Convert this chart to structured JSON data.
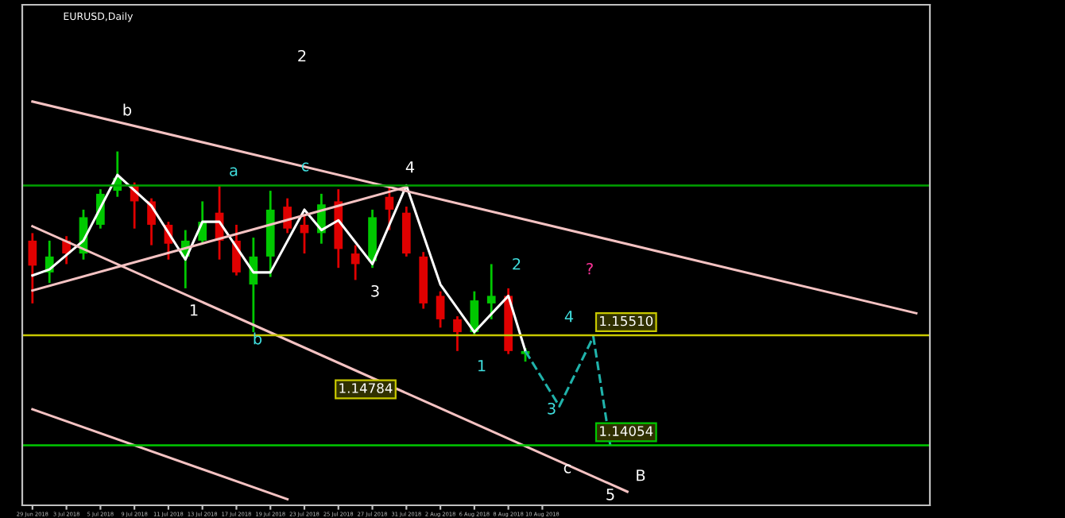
{
  "chart_data": {
    "type": "candlestick",
    "title": "EURUSD,Daily",
    "categories": [
      "29 Jun 2018",
      null,
      "3 Jul 2018",
      null,
      "5 Jul 2018",
      null,
      "9 Jul 2018",
      null,
      "11 Jul 2018",
      null,
      "13 Jul 2018",
      null,
      "17 Jul 2018",
      null,
      "19 Jul 2018",
      null,
      "23 Jul 2018",
      null,
      "25 Jul 2018",
      null,
      "27 Jul 2018",
      null,
      "31 Jul 2018",
      null,
      "2 Aug 2018",
      null,
      "6 Aug 2018",
      null,
      "8 Aug 2018",
      null,
      "10 Aug 2018",
      null,
      null,
      null,
      null,
      null,
      null,
      null,
      null,
      null,
      null,
      null,
      null,
      null,
      null,
      null,
      null,
      null,
      null,
      null,
      null,
      null,
      null
    ],
    "ohlc": [
      [
        1.1676,
        1.1686,
        1.1593,
        1.1643
      ],
      [
        1.1634,
        1.1676,
        1.162,
        1.1655
      ],
      [
        1.1676,
        1.1682,
        1.1645,
        1.1659
      ],
      [
        1.1659,
        1.1717,
        1.1651,
        1.1707
      ],
      [
        1.1697,
        1.1744,
        1.1692,
        1.1738
      ],
      [
        1.1742,
        1.1794,
        1.1734,
        1.1759
      ],
      [
        1.1749,
        1.1753,
        1.1692,
        1.1728
      ],
      [
        1.1728,
        1.1732,
        1.167,
        1.1697
      ],
      [
        1.1697,
        1.1701,
        1.1651,
        1.1672
      ],
      [
        1.1655,
        1.169,
        1.1613,
        1.1676
      ],
      [
        1.1676,
        1.1728,
        1.1672,
        1.1701
      ],
      [
        1.1713,
        1.1749,
        1.1651,
        1.1676
      ],
      [
        1.1676,
        1.1697,
        1.163,
        1.1634
      ],
      [
        1.1618,
        1.168,
        1.1555,
        1.1655
      ],
      [
        1.1655,
        1.1742,
        1.1628,
        1.1717
      ],
      [
        1.1721,
        1.1732,
        1.1686,
        1.1692
      ],
      [
        1.1697,
        1.1711,
        1.1659,
        1.1686
      ],
      [
        1.1686,
        1.1738,
        1.1672,
        1.1724
      ],
      [
        1.1728,
        1.1744,
        1.164,
        1.1665
      ],
      [
        1.1659,
        1.167,
        1.1624,
        1.1645
      ],
      [
        1.1649,
        1.1717,
        1.164,
        1.1707
      ],
      [
        1.1734,
        1.1749,
        1.169,
        1.1717
      ],
      [
        1.1713,
        1.1721,
        1.1655,
        1.1659
      ],
      [
        1.1655,
        1.1661,
        1.1586,
        1.1593
      ],
      [
        1.1603,
        1.1609,
        1.1561,
        1.1572
      ],
      [
        1.1572,
        1.1576,
        1.153,
        1.1555
      ],
      [
        1.1555,
        1.1609,
        1.1551,
        1.1597
      ],
      [
        1.1593,
        1.1645,
        1.1572,
        1.1603
      ],
      [
        1.1603,
        1.1613,
        1.1526,
        1.153
      ],
      [
        1.1526,
        1.1534,
        1.1516,
        1.153
      ],
      null,
      null,
      null,
      null,
      null,
      null,
      null,
      null,
      null,
      null,
      null,
      null,
      null,
      null,
      null,
      null,
      null,
      null,
      null,
      null,
      null,
      null,
      null
    ],
    "colors": [
      "#e00000",
      "#00c800",
      "#e00000",
      "#00c800",
      "#00c800",
      "#00c800",
      "#e00000",
      "#e00000",
      "#e00000",
      "#00c800",
      "#00c800",
      "#e00000",
      "#e00000",
      "#00c800",
      "#00c800",
      "#e00000",
      "#e00000",
      "#00c800",
      "#e00000",
      "#e00000",
      "#00c800",
      "#e00000",
      "#e00000",
      "#e00000",
      "#e00000",
      "#e00000",
      "#00c800",
      "#00c800",
      "#e00000",
      "#00c800",
      null,
      null,
      null,
      null,
      null,
      null,
      null,
      null,
      null,
      null,
      null,
      null,
      null,
      null,
      null,
      null,
      null,
      null,
      null,
      null,
      null,
      null,
      null
    ],
    "ylim": [
      1.1326,
      1.1988
    ],
    "tick_labels": "x",
    "series": [
      {
        "type": "line",
        "color": "#ffffff",
        "values": [
          1.163,
          1.1638,
          null,
          1.1676,
          null,
          1.1763,
          null,
          1.1722,
          null,
          1.1651,
          1.1701,
          1.1701,
          null,
          1.1634,
          1.1634,
          null,
          1.1717,
          1.169,
          1.1703,
          null,
          1.1645,
          null,
          1.1749,
          null,
          1.1618,
          null,
          1.1555,
          null,
          1.1603,
          1.153,
          null,
          null,
          null,
          null,
          null,
          null,
          null,
          null,
          null,
          null,
          null,
          null,
          null,
          null,
          null,
          null,
          null,
          null,
          null,
          null,
          null,
          null,
          null
        ]
      },
      {
        "type": "line",
        "color": "#f4c2c2",
        "values": [
          1.186,
          null,
          null,
          null,
          null,
          null,
          null,
          null,
          null,
          null,
          null,
          null,
          null,
          null,
          null,
          null,
          null,
          null,
          null,
          null,
          null,
          null,
          null,
          null,
          null,
          null,
          null,
          null,
          null,
          null,
          null,
          null,
          null,
          null,
          null,
          null,
          null,
          null,
          null,
          null,
          null,
          null,
          null,
          null,
          null,
          null,
          null,
          null,
          null,
          null,
          null,
          null,
          1.158
        ]
      },
      {
        "type": "line",
        "color": "#f4c2c2",
        "values": [
          1.1695,
          null,
          null,
          null,
          null,
          null,
          null,
          null,
          null,
          null,
          null,
          null,
          null,
          null,
          null,
          null,
          null,
          null,
          null,
          null,
          null,
          null,
          null,
          null,
          null,
          null,
          null,
          null,
          null,
          null,
          null,
          null,
          null,
          null,
          null,
          1.1344,
          null,
          null,
          null,
          null,
          null,
          null,
          null,
          null,
          null,
          null,
          null,
          null,
          null,
          null,
          null,
          null,
          null
        ]
      },
      {
        "type": "line",
        "color": "#f4c2c2",
        "values": [
          1.1453,
          null,
          null,
          null,
          null,
          null,
          null,
          null,
          null,
          null,
          null,
          null,
          null,
          null,
          null,
          1.1334,
          null,
          null,
          null,
          null,
          null,
          null,
          null,
          null,
          null,
          null,
          null,
          null,
          null,
          null,
          null,
          null,
          null,
          null,
          null,
          null,
          null,
          null,
          null,
          null,
          null,
          null,
          null,
          null,
          null,
          null,
          null,
          null,
          null,
          null,
          null,
          null,
          null
        ]
      },
      {
        "type": "line",
        "color": "#f4c2c2",
        "values": [
          1.161,
          null,
          null,
          null,
          null,
          null,
          null,
          null,
          null,
          null,
          null,
          null,
          null,
          null,
          null,
          null,
          null,
          null,
          null,
          null,
          null,
          null,
          1.1747,
          null,
          null,
          null,
          null,
          null,
          null,
          null,
          null,
          null,
          null,
          null,
          null,
          null,
          null,
          null,
          null,
          null,
          null,
          null,
          null,
          null,
          null,
          null,
          null,
          null,
          null,
          null,
          null,
          null,
          null
        ]
      },
      {
        "type": "line",
        "color": "#20b2aa",
        "line_style": "dashed",
        "values": [
          null,
          null,
          null,
          null,
          null,
          null,
          null,
          null,
          null,
          null,
          null,
          null,
          null,
          null,
          null,
          null,
          null,
          null,
          null,
          null,
          null,
          null,
          null,
          null,
          null,
          null,
          null,
          null,
          null,
          1.153,
          null,
          1.1457,
          null,
          1.1549,
          1.1405,
          null,
          null,
          null,
          null,
          null,
          null,
          null,
          null,
          null,
          null,
          null,
          null,
          null,
          null,
          null,
          null,
          null,
          null
        ]
      }
    ],
    "ref_lines": [
      {
        "axis": "y",
        "value": 1.1551,
        "label": "1.15510",
        "color": "#c8c800"
      },
      {
        "axis": "y",
        "value": 1.14054,
        "label": "1.14054",
        "color": "#00c800"
      },
      {
        "axis": "y",
        "value": 1.1749,
        "color": "#00a000"
      }
    ],
    "annotations": [
      "1.14784",
      "b",
      "2",
      "a",
      "c",
      "4",
      "1",
      "b",
      "3",
      "1",
      "2",
      "4",
      "?",
      "3",
      "c",
      "5",
      "B"
    ]
  }
}
